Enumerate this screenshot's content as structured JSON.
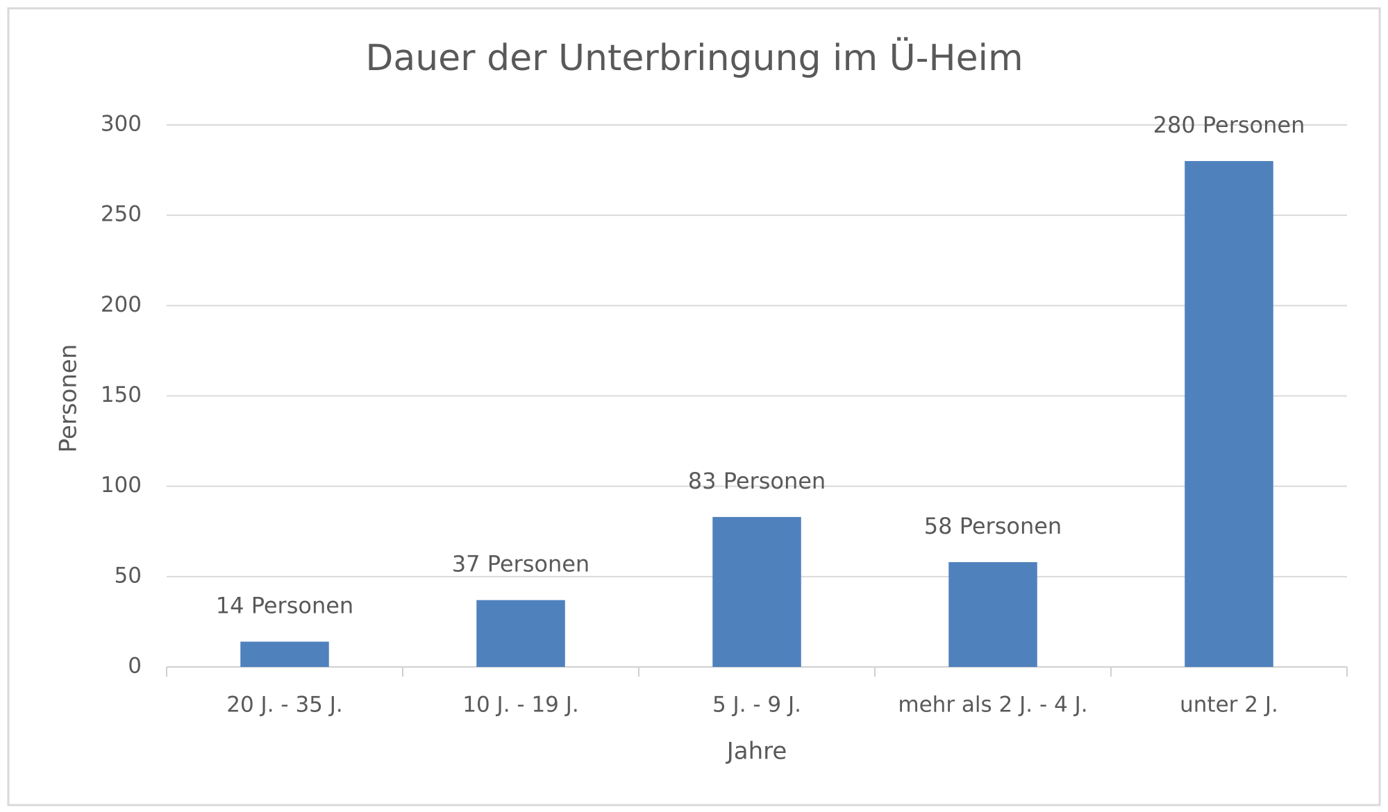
{
  "chart_data": {
    "type": "bar",
    "title": "Dauer der Unterbringung im Ü-Heim",
    "x_label": "Jahre",
    "y_label": "Personen",
    "categories": [
      "20 J. - 35 J.",
      "10 J. - 19 J.",
      "5 J. - 9 J.",
      "mehr als 2 J. - 4 J.",
      "unter 2 J."
    ],
    "values": [
      14,
      37,
      83,
      58,
      280
    ],
    "value_labels": [
      "14 Personen",
      "37 Personen",
      "83 Personen",
      "58 Personen",
      "280 Personen"
    ],
    "color": "#4f81bd",
    "ylim": [
      0,
      300
    ],
    "yticks": [
      0,
      50,
      100,
      150,
      200,
      250,
      300
    ],
    "grid": true
  }
}
